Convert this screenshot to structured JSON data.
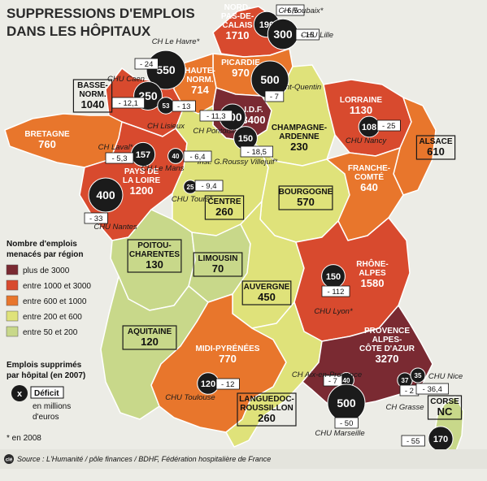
{
  "title": {
    "line1": "SUPPRESSIONS D'EMPLOIS",
    "line2": "DANS LES HÔPITAUX"
  },
  "colors": {
    "cat1": "#7a2a32",
    "cat2": "#d84a2e",
    "cat3": "#e8762c",
    "cat4": "#dfe27a",
    "cat5": "#c8d88a",
    "sea": "#ecece6",
    "circle": "#1b1b1b"
  },
  "regions": [
    {
      "id": "nord",
      "lines": [
        "NORD-",
        "PAS-DE-",
        "CALAIS"
      ],
      "value": "1710",
      "cat": "cat2",
      "boxed": false
    },
    {
      "id": "picardie",
      "lines": [
        "PICARDIE"
      ],
      "value": "970",
      "cat": "cat3",
      "boxed": false
    },
    {
      "id": "hnormandie",
      "lines": [
        "HAUTE-",
        "NORM."
      ],
      "value": "714",
      "cat": "cat3",
      "boxed": false
    },
    {
      "id": "bnormandie",
      "lines": [
        "BASSE-",
        "NORM."
      ],
      "value": "1040",
      "cat": "cat2",
      "boxed": true
    },
    {
      "id": "idf",
      "lines": [
        "I.D.F."
      ],
      "value": "3400",
      "cat": "cat1",
      "boxed": false
    },
    {
      "id": "bretagne",
      "lines": [
        "BRETAGNE"
      ],
      "value": "760",
      "cat": "cat3",
      "boxed": false
    },
    {
      "id": "lorraine",
      "lines": [
        "LORRAINE"
      ],
      "value": "1130",
      "cat": "cat2",
      "boxed": false
    },
    {
      "id": "alsace",
      "lines": [
        "ALSACE"
      ],
      "value": "610",
      "cat": "cat3",
      "boxed": true
    },
    {
      "id": "champagne",
      "lines": [
        "CHAMPAGNE-",
        "ARDENNE"
      ],
      "value": "230",
      "cat": "cat4",
      "boxed": false
    },
    {
      "id": "pdl",
      "lines": [
        "PAYS DE",
        "LA LOIRE"
      ],
      "value": "1200",
      "cat": "cat2",
      "boxed": false
    },
    {
      "id": "centre",
      "lines": [
        "CENTRE"
      ],
      "value": "260",
      "cat": "cat4",
      "boxed": true
    },
    {
      "id": "bourgogne",
      "lines": [
        "BOURGOGNE"
      ],
      "value": "570",
      "cat": "cat4",
      "boxed": true
    },
    {
      "id": "franche",
      "lines": [
        "FRANCHE-",
        "COMTÉ"
      ],
      "value": "640",
      "cat": "cat3",
      "boxed": false
    },
    {
      "id": "poitou",
      "lines": [
        "POITOU-",
        "CHARENTES"
      ],
      "value": "130",
      "cat": "cat5",
      "boxed": true
    },
    {
      "id": "limousin",
      "lines": [
        "LIMOUSIN"
      ],
      "value": "70",
      "cat": "cat5",
      "boxed": true
    },
    {
      "id": "auvergne",
      "lines": [
        "AUVERGNE"
      ],
      "value": "450",
      "cat": "cat4",
      "boxed": true
    },
    {
      "id": "rhone",
      "lines": [
        "RHÔNE-",
        "ALPES"
      ],
      "value": "1580",
      "cat": "cat2",
      "boxed": false
    },
    {
      "id": "aquitaine",
      "lines": [
        "AQUITAINE"
      ],
      "value": "120",
      "cat": "cat5",
      "boxed": true
    },
    {
      "id": "midi",
      "lines": [
        "MIDI-PYRÉNÉES"
      ],
      "value": "770",
      "cat": "cat3",
      "boxed": false
    },
    {
      "id": "languedoc",
      "lines": [
        "LANGUEDOC-",
        "ROUSSILLON"
      ],
      "value": "260",
      "cat": "cat4",
      "boxed": true
    },
    {
      "id": "paca",
      "lines": [
        "PROVENCE",
        "ALPES-",
        "CÔTE D'AZUR"
      ],
      "value": "3270",
      "cat": "cat1",
      "boxed": false
    },
    {
      "id": "corse",
      "lines": [
        "CORSE"
      ],
      "value": "NC",
      "cat": "cat5",
      "boxed": true
    }
  ],
  "hospitals": [
    {
      "id": "roubaix",
      "name": "CH Roubaix*",
      "circle": "190",
      "deficit": "- 6,5"
    },
    {
      "id": "lille",
      "name": "CHU Lille",
      "circle": "300",
      "deficit": "- 15"
    },
    {
      "id": "lehavre",
      "name": "CH Le Havre*",
      "circle": "550",
      "deficit": "- 24"
    },
    {
      "id": "caen",
      "name": "CHU Caen",
      "circle": "250",
      "deficit": "- 12,1"
    },
    {
      "id": "lisieux",
      "name": "CH Lisieux",
      "circle": "53",
      "deficit": "- 13"
    },
    {
      "id": "stquentin",
      "name": "CH Saint-Quentin",
      "circle": "500",
      "deficit": "- 7"
    },
    {
      "id": "pontoise",
      "name": "CH Pontoise",
      "circle": "200",
      "deficit": "- 11,3"
    },
    {
      "id": "villejuif",
      "name": "Inst. G.Roussy Villejuif*",
      "circle": "150",
      "deficit": "- 18,5"
    },
    {
      "id": "nancy",
      "name": "CHU Nancy",
      "circle": "108",
      "deficit": "- 25"
    },
    {
      "id": "laval",
      "name": "CH Laval*",
      "circle": "157",
      "deficit": "- 5,3"
    },
    {
      "id": "lemans",
      "name": "CH Le Mans",
      "circle": "40",
      "deficit": "- 6,4"
    },
    {
      "id": "tours",
      "name": "CHU Tours*",
      "circle": "25",
      "deficit": "- 9,4"
    },
    {
      "id": "nantes",
      "name": "CHU Nantes",
      "circle": "400",
      "deficit": "- 33"
    },
    {
      "id": "lyon",
      "name": "CHU Lyon*",
      "circle": "150",
      "deficit": "- 112"
    },
    {
      "id": "toulouse",
      "name": "CHU Toulouse",
      "circle": "120",
      "deficit": "- 12"
    },
    {
      "id": "aix",
      "name": "CH Aix-en-Provence",
      "circle": "40",
      "deficit": "- 7"
    },
    {
      "id": "marseille",
      "name": "CHU Marseille",
      "circle": "500",
      "deficit": "- 50"
    },
    {
      "id": "grasse",
      "name": "CH Grasse",
      "circle": "37",
      "deficit": "- 2"
    },
    {
      "id": "nice",
      "name": "CHU Nice",
      "circle": "35",
      "deficit": "- 36,4"
    },
    {
      "id": "ajaccio",
      "name": "CH Ajaccio",
      "circle": "170",
      "deficit": "- 55"
    }
  ],
  "legend": {
    "heading1": "Nombre d'emplois",
    "heading2": "menacés par région",
    "items": [
      {
        "label": "plus de 3000",
        "cat": "cat1"
      },
      {
        "label": "entre 1000 et 3000",
        "cat": "cat2"
      },
      {
        "label": "entre 600 et 1000",
        "cat": "cat3"
      },
      {
        "label": "entre 200 et 600",
        "cat": "cat4"
      },
      {
        "label": "entre 50 et 200",
        "cat": "cat5"
      }
    ],
    "hosp_heading1": "Emplois supprimés",
    "hosp_heading2": "par hôpital (en 2007)",
    "circle_symbol": "x",
    "deficit_label": "Déficit",
    "deficit_desc1": "en millions",
    "deficit_desc2": "d'euros",
    "footnote": "* en 2008"
  },
  "source": {
    "badge": "clé",
    "text": "Source : L'Humanité / pôle finances / BDHF, Fédération hospitalière de France"
  }
}
